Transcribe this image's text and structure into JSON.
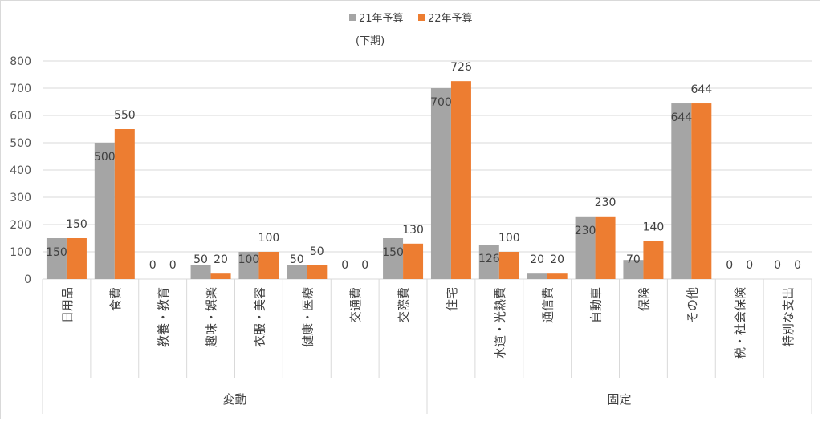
{
  "chart_data": {
    "type": "bar",
    "subtitle": "(下期)",
    "categories": [
      "日用品",
      "食費",
      "教養・教育",
      "趣味・娯楽",
      "衣服・美容",
      "健康・医療",
      "交通費",
      "交際費",
      "住宅",
      "水道・光熱費",
      "通信費",
      "自動車",
      "保険",
      "その他",
      "税・社会保険",
      "特別な支出"
    ],
    "groups": [
      {
        "label": "変動",
        "count": 8
      },
      {
        "label": "固定",
        "count": 8
      }
    ],
    "series": [
      {
        "name": "21年予算",
        "color": "#a5a5a5",
        "values": [
          150,
          500,
          0,
          50,
          100,
          50,
          0,
          150,
          700,
          126,
          20,
          230,
          70,
          644,
          0,
          0
        ]
      },
      {
        "name": "22年予算",
        "color": "#ed7d31",
        "values": [
          150,
          550,
          0,
          20,
          100,
          50,
          0,
          130,
          726,
          100,
          20,
          230,
          140,
          644,
          0,
          0
        ]
      }
    ],
    "ylim": [
      0,
      800
    ],
    "yticks": [
      "0",
      "100",
      "200",
      "300",
      "400",
      "500",
      "600",
      "700",
      "800"
    ],
    "grid": true,
    "legend_position": "top-center"
  }
}
